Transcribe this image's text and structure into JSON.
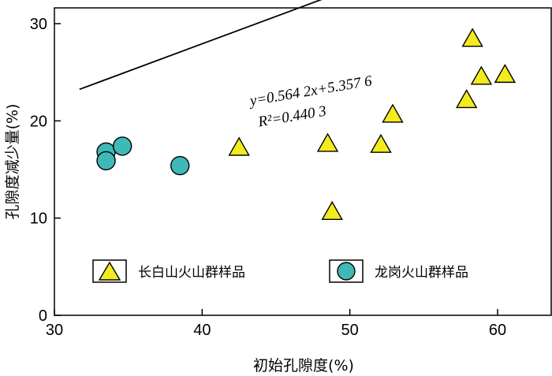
{
  "chart_data": {
    "type": "scatter",
    "xlabel": "初始孔隙度(%)",
    "ylabel": "孔隙度减少量(%)",
    "xlim": [
      30,
      62
    ],
    "ylim": [
      0,
      31
    ],
    "xticks": [
      30,
      40,
      50,
      60
    ],
    "yticks": [
      0,
      10,
      20,
      30
    ],
    "series": [
      {
        "name": "长白山火山群样品",
        "marker": "triangle",
        "color": "#f2ec1e",
        "points": [
          {
            "x": 42.5,
            "y": 17.2
          },
          {
            "x": 48.5,
            "y": 17.6
          },
          {
            "x": 48.8,
            "y": 10.6
          },
          {
            "x": 52.1,
            "y": 17.5
          },
          {
            "x": 52.9,
            "y": 20.6
          },
          {
            "x": 57.9,
            "y": 22.1
          },
          {
            "x": 58.3,
            "y": 28.4
          },
          {
            "x": 58.9,
            "y": 24.5
          },
          {
            "x": 60.5,
            "y": 24.7
          }
        ]
      },
      {
        "name": "龙岗火山群样品",
        "marker": "circle",
        "color": "#3fb8b8",
        "points": [
          {
            "x": 33.5,
            "y": 16.8
          },
          {
            "x": 33.5,
            "y": 15.9
          },
          {
            "x": 34.6,
            "y": 17.4
          },
          {
            "x": 38.5,
            "y": 15.4
          }
        ]
      }
    ],
    "fit_line": {
      "slope": 0.5642,
      "intercept": 5.3576,
      "x_range": [
        31.7,
        61.8
      ],
      "equation": "y=0.564 2x+5.357 6",
      "r2": "R²=0.440 3"
    },
    "legend_position": "lower-middle"
  }
}
